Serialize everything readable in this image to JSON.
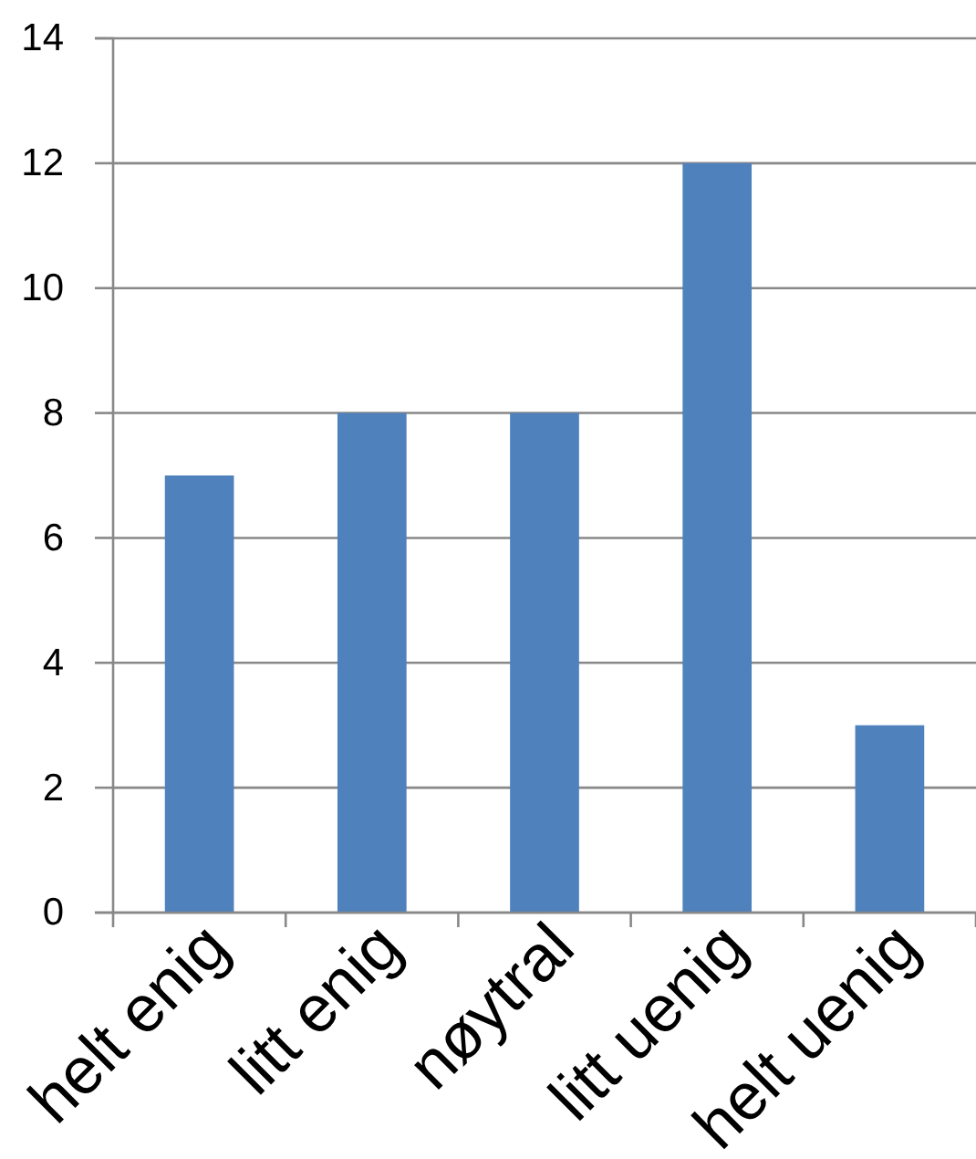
{
  "chart_data": {
    "type": "bar",
    "categories": [
      "helt enig",
      "litt enig",
      "nøytral",
      "litt uenig",
      "helt uenig"
    ],
    "values": [
      7,
      8,
      8,
      12,
      3
    ],
    "color": "#4f81bd",
    "ylim": [
      0,
      14
    ],
    "yticks": [
      0,
      2,
      4,
      6,
      8,
      10,
      12,
      14
    ],
    "grid": "y"
  }
}
